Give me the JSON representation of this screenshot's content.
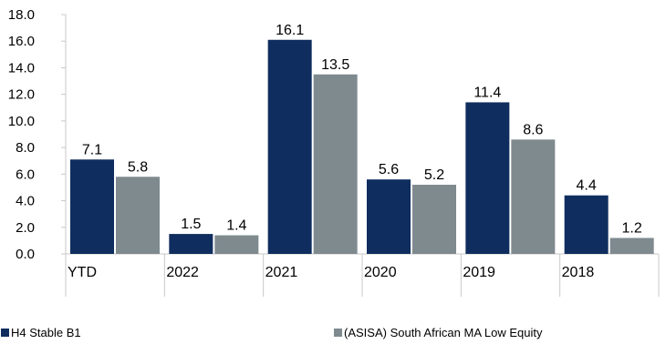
{
  "chart_data": {
    "type": "bar",
    "categories": [
      "YTD",
      "2022",
      "2021",
      "2020",
      "2019",
      "2018"
    ],
    "series": [
      {
        "name": "H4 Stable B1",
        "color": "#0f2d5e",
        "values": [
          7.1,
          1.5,
          16.1,
          5.6,
          11.4,
          4.4
        ]
      },
      {
        "name": "(ASISA) South African MA Low Equity",
        "color": "#7f8a8f",
        "values": [
          5.8,
          1.4,
          13.5,
          5.2,
          8.6,
          1.2
        ]
      }
    ],
    "yticks": [
      "0.0",
      "2.0",
      "4.0",
      "6.0",
      "8.0",
      "10.0",
      "12.0",
      "14.0",
      "16.0",
      "18.0"
    ],
    "ylim": [
      0,
      18
    ],
    "grid": false,
    "legend_position": "bottom",
    "title": "",
    "xlabel": "",
    "ylabel": ""
  }
}
